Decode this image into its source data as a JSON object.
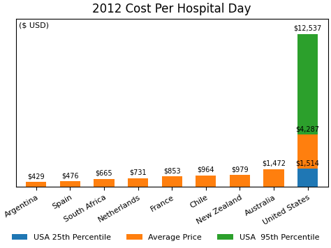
{
  "chart_data": {
    "type": "bar",
    "title": "2012 Cost Per Hospital Day",
    "annotation": "($ USD)",
    "categories": [
      "Argentina",
      "Spain",
      "South Africa",
      "Netherlands",
      "France",
      "Chile",
      "New Zealand",
      "Australia",
      "United States"
    ],
    "series": [
      {
        "name": "USA 25th Percentile",
        "values": [
          null,
          null,
          null,
          null,
          null,
          null,
          null,
          null,
          1514
        ],
        "value_labels": [
          null,
          null,
          null,
          null,
          null,
          null,
          null,
          null,
          "$1,514"
        ]
      },
      {
        "name": "Average Price",
        "values": [
          429,
          476,
          665,
          731,
          853,
          964,
          979,
          1472,
          4287
        ],
        "value_labels": [
          "$429",
          "$476",
          "$665",
          "$731",
          "$853",
          "$964",
          "$979",
          "$1,472",
          "$4,287"
        ]
      },
      {
        "name": "USA  95th Percentile",
        "values": [
          null,
          null,
          null,
          null,
          null,
          null,
          null,
          null,
          12537
        ],
        "value_labels": [
          null,
          null,
          null,
          null,
          null,
          null,
          null,
          null,
          "$12,537"
        ]
      }
    ],
    "ylim": [
      0,
      13800
    ],
    "yticks": [],
    "tick_labels": "x",
    "data_labels": true,
    "grid": false,
    "legend": "lower center"
  }
}
